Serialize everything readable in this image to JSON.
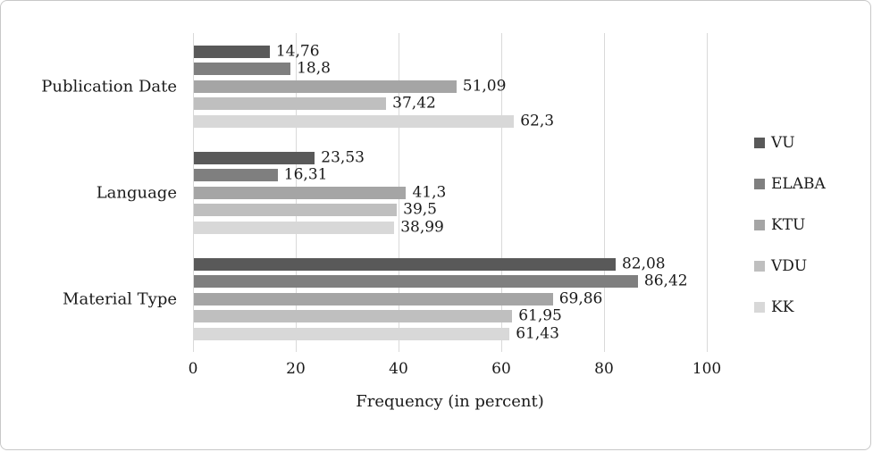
{
  "chart_data": {
    "type": "bar",
    "orientation": "horizontal",
    "title": "",
    "xlabel": "Frequency (in percent)",
    "ylabel": "",
    "xlim": [
      0,
      100
    ],
    "grid": true,
    "legend_position": "right",
    "x_ticks": [
      {
        "value": 0,
        "label": "0"
      },
      {
        "value": 20,
        "label": "20"
      },
      {
        "value": 40,
        "label": "40"
      },
      {
        "value": 60,
        "label": "60"
      },
      {
        "value": 80,
        "label": "80"
      },
      {
        "value": 100,
        "label": "100"
      }
    ],
    "categories": [
      "Publication Date",
      "Language",
      "Material Type"
    ],
    "series": [
      {
        "name": "VU",
        "color": "#595959",
        "values": [
          14.76,
          23.53,
          82.08
        ],
        "labels": [
          "14,76",
          "23,53",
          "82,08"
        ]
      },
      {
        "name": "ELABA",
        "color": "#7f7f7f",
        "values": [
          18.8,
          16.31,
          86.42
        ],
        "labels": [
          "18,8",
          "16,31",
          "86,42"
        ]
      },
      {
        "name": "KTU",
        "color": "#a5a5a5",
        "values": [
          51.09,
          41.3,
          69.86
        ],
        "labels": [
          "51,09",
          "41,3",
          "69,86"
        ]
      },
      {
        "name": "VDU",
        "color": "#bfbfbf",
        "values": [
          37.42,
          39.5,
          61.95
        ],
        "labels": [
          "37,42",
          "39,5",
          "61,95"
        ]
      },
      {
        "name": "KK",
        "color": "#d8d8d8",
        "values": [
          62.3,
          38.99,
          61.43
        ],
        "labels": [
          "62,3",
          "38,99",
          "61,43"
        ]
      }
    ]
  },
  "colors": {
    "gridline": "#d9d9d9",
    "text": "#1a1a1a",
    "frame_border": "#c8c8c8"
  }
}
